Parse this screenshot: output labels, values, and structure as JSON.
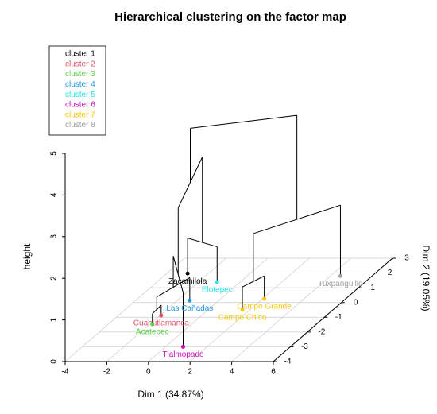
{
  "chart_data": {
    "type": "dendrogram3d",
    "title": "Hierarchical clustering on the factor map",
    "xlabel": "Dim 1 (34.87%)",
    "ylabel": "Dim 2 (19.05%)",
    "zlabel": "height",
    "xlim": [
      -4,
      6
    ],
    "ylim": [
      -4,
      3
    ],
    "zlim": [
      0,
      5
    ],
    "xticks": [
      -4,
      -2,
      0,
      2,
      4,
      6
    ],
    "yticks": [
      -4,
      -3,
      -2,
      -1,
      0,
      1,
      2,
      3
    ],
    "zticks": [
      0,
      1,
      2,
      3,
      4,
      5
    ],
    "grid": true,
    "legend": [
      {
        "name": "cluster 1",
        "color": "#000000"
      },
      {
        "name": "cluster 2",
        "color": "#df536b"
      },
      {
        "name": "cluster 3",
        "color": "#61d04f"
      },
      {
        "name": "cluster 4",
        "color": "#2297e6"
      },
      {
        "name": "cluster 5",
        "color": "#28e2e5"
      },
      {
        "name": "cluster 6",
        "color": "#cd0bbc"
      },
      {
        "name": "cluster 7",
        "color": "#f5c710"
      },
      {
        "name": "cluster 8",
        "color": "#9e9e9e"
      }
    ],
    "points": [
      {
        "name": "Zacamilola",
        "cluster": 0,
        "d1": -3.0,
        "d2": 1.97
      },
      {
        "name": "Cuahutlamanca",
        "cluster": 1,
        "d1": -1.94,
        "d2": -0.88
      },
      {
        "name": "Acatepec",
        "cluster": 2,
        "d1": -1.88,
        "d2": -1.47
      },
      {
        "name": "Las Cañadas",
        "cluster": 3,
        "d1": -1.4,
        "d2": 0.14
      },
      {
        "name": "Elotepec",
        "cluster": 4,
        "d1": -1.1,
        "d2": 1.38
      },
      {
        "name": "Tlalmopado",
        "cluster": 5,
        "d1": 0.85,
        "d2": -3.0
      },
      {
        "name": "Campo Grande",
        "cluster": 6,
        "d1": 2.09,
        "d2": 0.25
      },
      {
        "name": "Campo Chico",
        "cluster": 6,
        "d1": 1.65,
        "d2": -0.5
      },
      {
        "name": "Tuxpanguillo",
        "cluster": 7,
        "d1": 4.48,
        "d2": 1.8
      }
    ],
    "merges": [
      {
        "children": [
          1,
          2
        ],
        "height": 0.25
      },
      {
        "children": [
          3,
          9
        ],
        "height": 0.55
      },
      {
        "children": [
          0,
          4
        ],
        "height": 0.85
      },
      {
        "children": [
          5,
          10
        ],
        "height": 1.3
      },
      {
        "children": [
          11,
          12
        ],
        "height": 2.9
      },
      {
        "children": [
          6,
          7
        ],
        "height": 0.55
      },
      {
        "children": [
          14,
          8
        ],
        "height": 1.7
      },
      {
        "children": [
          13,
          15
        ],
        "height": 4.2
      }
    ]
  }
}
